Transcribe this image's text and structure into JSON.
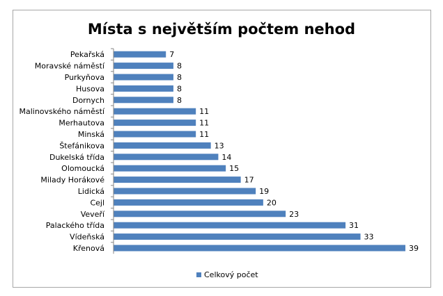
{
  "chart_data": {
    "type": "bar",
    "orientation": "horizontal",
    "title": "Místa s největším počtem nehod",
    "categories": [
      "Pekařská",
      "Moravské náměstí",
      "Purkyňova",
      "Husova",
      "Dornych",
      "Malinovského náměstí",
      "Merhautova",
      "Minská",
      "Štefánikova",
      "Dukelská třída",
      "Olomoucká",
      "Milady Horákové",
      "Lidická",
      "Cejl",
      "Veveří",
      "Palackého třída",
      "Vídeňská",
      "Křenová"
    ],
    "series": [
      {
        "name": "Celkový počet",
        "values": [
          7,
          8,
          8,
          8,
          8,
          11,
          11,
          11,
          13,
          14,
          15,
          17,
          19,
          20,
          23,
          31,
          33,
          39
        ],
        "color": "#4f81bd"
      }
    ],
    "data_labels": true,
    "legend": "bottom",
    "grid": false
  }
}
